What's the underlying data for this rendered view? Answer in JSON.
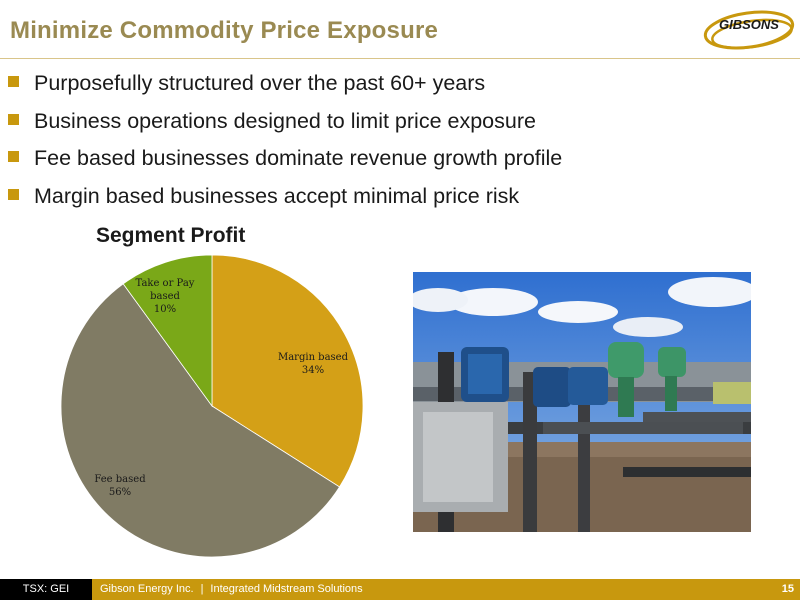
{
  "slide": {
    "title": "Minimize Commodity Price Exposure",
    "logo_text": "GIBSONS",
    "bullets": [
      "Purposefully structured over the past 60+ years",
      "Business operations designed to limit price exposure",
      "Fee based businesses dominate revenue growth profile",
      "Margin based businesses accept minimal price risk"
    ]
  },
  "chart_data": {
    "type": "pie",
    "title": "Segment Profit",
    "slices": [
      {
        "label": [
          "Margin based",
          "34%"
        ],
        "value": 34,
        "color": "#d4a017"
      },
      {
        "label": [
          "Fee based",
          "56%"
        ],
        "value": 56,
        "color": "#807b64"
      },
      {
        "label": [
          "Take or Pay",
          "based",
          "10%"
        ],
        "value": 10,
        "color": "#7aa818"
      }
    ]
  },
  "footer": {
    "ticker": "TSX: GEI",
    "company": "Gibson Energy Inc.",
    "separator": "|",
    "tagline": "Integrated Midstream Solutions",
    "page": "15"
  },
  "colors": {
    "title": "#9a8a52",
    "accent": "#c8980e",
    "footer_bar": "#c8980e"
  }
}
